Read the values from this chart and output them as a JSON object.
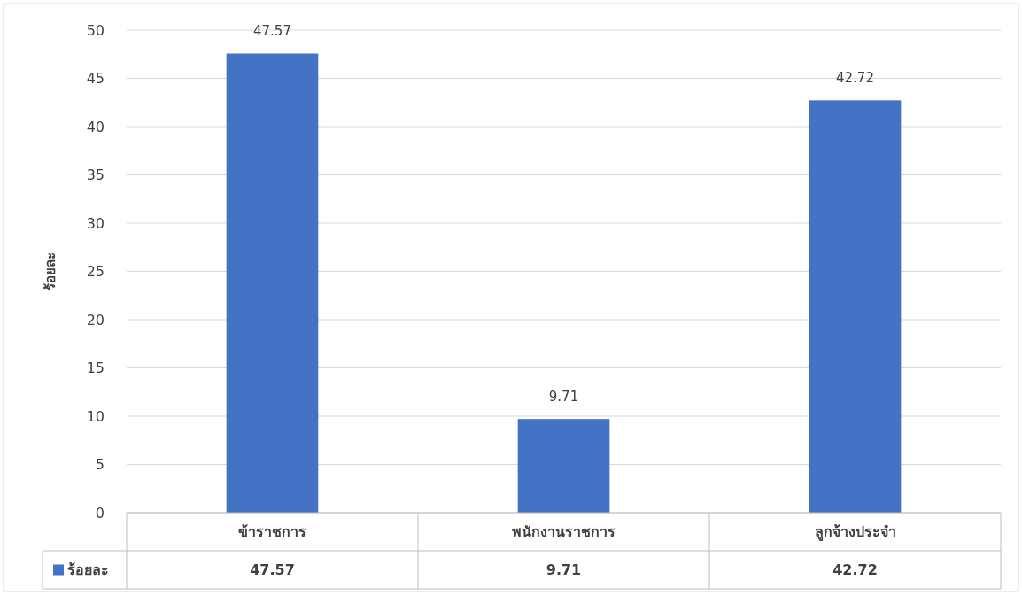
{
  "chart_data": {
    "type": "bar",
    "ylabel": "ร้อยละ",
    "categories": [
      "ข้าราชการ",
      "พนักงานราชการ",
      "ลูกจ้างประจำ"
    ],
    "series": [
      {
        "name": "ร้อยละ",
        "color": "#4472c4",
        "values": [
          47.57,
          9.71,
          42.72
        ]
      }
    ],
    "ylim": [
      0,
      50
    ],
    "yticks": [
      0,
      5,
      10,
      15,
      20,
      25,
      30,
      35,
      40,
      45,
      50
    ],
    "grid": "y",
    "data_labels": true,
    "legend": "bottom left",
    "annotations": [
      {
        "text": "47.57",
        "x": "ข้าราชการ",
        "y": 47.57
      },
      {
        "text": "9.71",
        "x": "พนักงานราชการ",
        "y": 9.71
      },
      {
        "text": "42.72",
        "x": "ลูกจ้างประจำ",
        "y": 42.72
      }
    ]
  }
}
